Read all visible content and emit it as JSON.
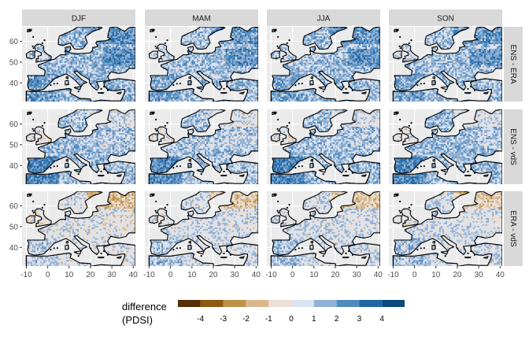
{
  "chart_data": {
    "type": "heatmap",
    "description_free": true,
    "columns": [
      "DJF",
      "MAM",
      "JJA",
      "SON"
    ],
    "rows": [
      "ENS - ERA",
      "ENS - vdS",
      "ERA - vdS"
    ],
    "x_ticks": [
      -10,
      0,
      10,
      20,
      30,
      40
    ],
    "y_ticks": [
      40,
      50,
      60
    ],
    "xlim": [
      -12,
      41
    ],
    "ylim": [
      31,
      67
    ],
    "legend": {
      "title_line1": "difference",
      "title_line2": "(PDSI)",
      "labels": [
        "-4",
        "-3",
        "-2",
        "-1",
        "0",
        "1",
        "2",
        "3",
        "4"
      ],
      "colors": [
        "#543005",
        "#8c5a12",
        "#bf9148",
        "#d8b98e",
        "#ecdfd4",
        "#dbe3f0",
        "#92b1d4",
        "#4f8abd",
        "#2166a3",
        "#0b4a7e"
      ],
      "placement": "bottom"
    },
    "panel_bias": [
      [
        0.9,
        0.7,
        0.8,
        0.7
      ],
      [
        0.7,
        0.6,
        0.8,
        0.8
      ],
      [
        -0.3,
        0.0,
        0.1,
        0.0
      ]
    ],
    "grid": true,
    "panel_background": "#ebebeb",
    "strip_background": "#d9d9d9",
    "land_outline_color": "#000000"
  }
}
